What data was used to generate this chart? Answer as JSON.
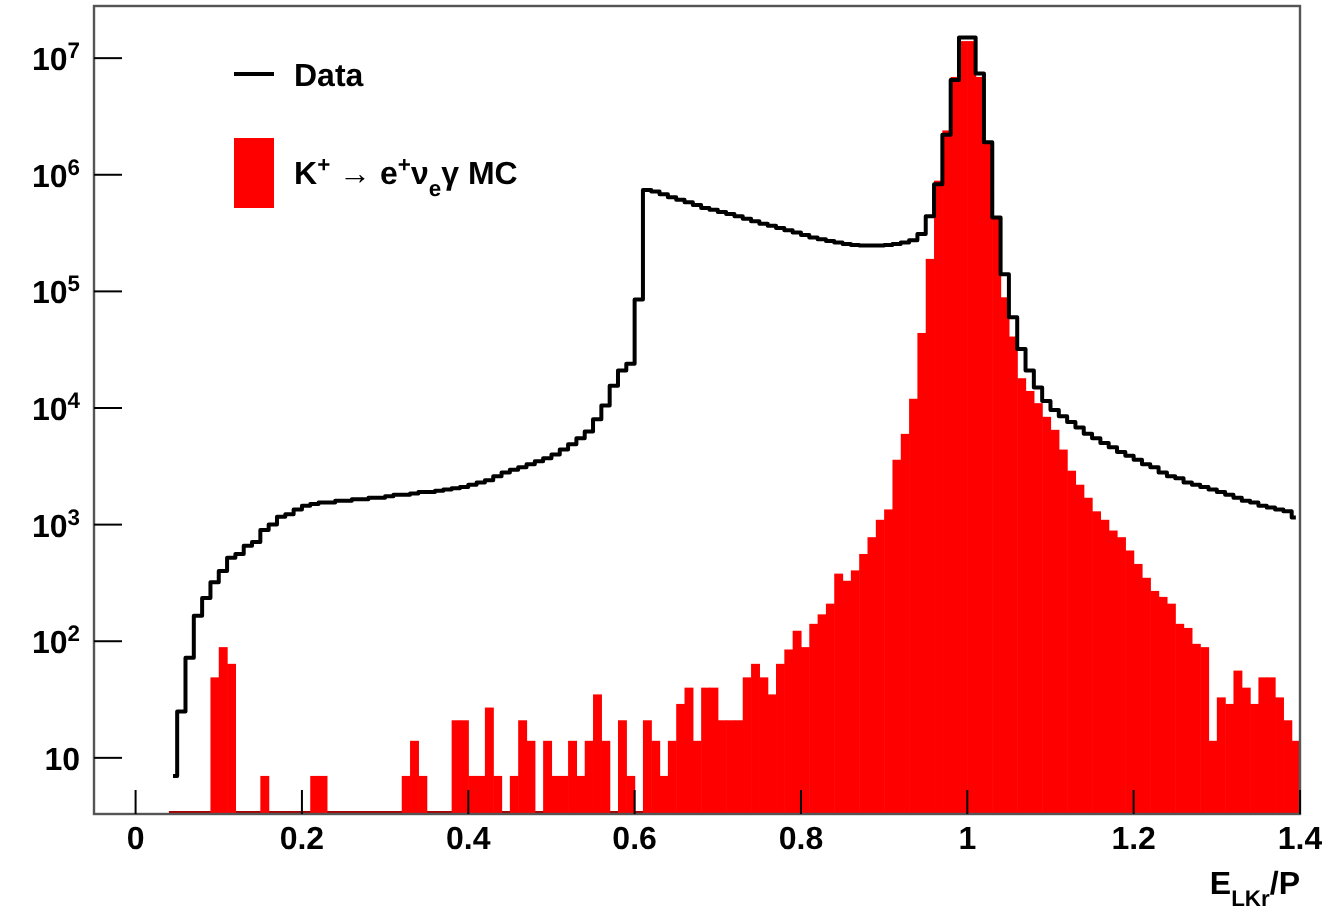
{
  "chart_data": {
    "type": "histogram",
    "xlabel": "E$_{LKr}$/P",
    "log": "y",
    "grid": false,
    "legend": "top left",
    "xlim": [
      -0.05,
      1.4
    ],
    "xticks": [
      0,
      0.2,
      0.4,
      0.6,
      0.8,
      1,
      1.2,
      1.4
    ],
    "ylim": [
      3.3,
      28000000
    ],
    "yticks": [
      10,
      {
        "value": 100,
        "label": "10$^{2}$"
      },
      {
        "value": 1000,
        "label": "10$^{3}$"
      },
      {
        "value": 10000,
        "label": "10$^{4}$"
      },
      {
        "value": 100000,
        "label": "10$^{5}$"
      },
      {
        "value": 1000000,
        "label": "10$^{6}$"
      },
      {
        "value": 10000000,
        "label": "10$^{7}$"
      }
    ],
    "bins": [
      0.04,
      0.05,
      0.06,
      0.07,
      0.08,
      0.09,
      0.1,
      0.11,
      0.12,
      0.13,
      0.14,
      0.15,
      0.16,
      0.17,
      0.18,
      0.19,
      0.2,
      0.21,
      0.22,
      0.23,
      0.24,
      0.25,
      0.26,
      0.27,
      0.28,
      0.29,
      0.3,
      0.31,
      0.32,
      0.33,
      0.34,
      0.35,
      0.36,
      0.37,
      0.38,
      0.39,
      0.4,
      0.41,
      0.42,
      0.43,
      0.44,
      0.45,
      0.46,
      0.47,
      0.48,
      0.49,
      0.5,
      0.51,
      0.52,
      0.53,
      0.54,
      0.55,
      0.56,
      0.57,
      0.58,
      0.59,
      0.6,
      0.61,
      0.62,
      0.63,
      0.64,
      0.65,
      0.66,
      0.67,
      0.68,
      0.69,
      0.7,
      0.71,
      0.72,
      0.73,
      0.74,
      0.75,
      0.76,
      0.77,
      0.78,
      0.79,
      0.8,
      0.81,
      0.82,
      0.83,
      0.84,
      0.85,
      0.86,
      0.87,
      0.88,
      0.89,
      0.9,
      0.91,
      0.92,
      0.93,
      0.94,
      0.95,
      0.96,
      0.97,
      0.98,
      0.99,
      1,
      1.01,
      1.02,
      1.03,
      1.04,
      1.05,
      1.06,
      1.07,
      1.08,
      1.09,
      1.1,
      1.11,
      1.12,
      1.13,
      1.14,
      1.15,
      1.16,
      1.17,
      1.18,
      1.19,
      1.2,
      1.21,
      1.22,
      1.23,
      1.24,
      1.25,
      1.26,
      1.27,
      1.28,
      1.29,
      1.3,
      1.31,
      1.32,
      1.33,
      1.34,
      1.35,
      1.36,
      1.37,
      1.38,
      1.39,
      1.4
    ],
    "series": [
      {
        "name": "Data",
        "type": "step",
        "color": "#000000",
        "x": [
          0.045,
          0.055,
          0.065,
          0.075,
          0.085,
          0.095,
          0.105,
          0.115,
          0.125,
          0.135,
          0.145,
          0.155,
          0.165,
          0.175,
          0.185,
          0.195,
          0.205,
          0.215,
          0.225,
          0.235,
          0.245,
          0.255,
          0.265,
          0.275,
          0.285,
          0.295,
          0.305,
          0.315,
          0.325,
          0.335,
          0.345,
          0.355,
          0.365,
          0.375,
          0.385,
          0.395,
          0.405,
          0.415,
          0.425,
          0.435,
          0.445,
          0.455,
          0.465,
          0.475,
          0.485,
          0.495,
          0.505,
          0.515,
          0.525,
          0.535,
          0.545,
          0.555,
          0.565,
          0.575,
          0.585,
          0.595,
          0.605,
          0.615,
          0.625,
          0.635,
          0.645,
          0.655,
          0.665,
          0.675,
          0.685,
          0.695,
          0.705,
          0.715,
          0.725,
          0.735,
          0.745,
          0.755,
          0.765,
          0.775,
          0.785,
          0.795,
          0.805,
          0.815,
          0.825,
          0.835,
          0.845,
          0.855,
          0.865,
          0.875,
          0.885,
          0.895,
          0.905,
          0.915,
          0.925,
          0.935,
          0.945,
          0.955,
          0.965,
          0.975,
          0.985,
          0.995,
          1.005,
          1.015,
          1.025,
          1.035,
          1.045,
          1.055,
          1.065,
          1.075,
          1.085,
          1.095,
          1.105,
          1.115,
          1.125,
          1.135,
          1.145,
          1.155,
          1.165,
          1.175,
          1.185,
          1.195,
          1.205,
          1.215,
          1.225,
          1.235,
          1.245,
          1.255,
          1.265,
          1.275,
          1.285,
          1.295,
          1.305,
          1.315,
          1.325,
          1.335,
          1.345,
          1.355,
          1.365,
          1.375,
          1.385,
          1.395
        ],
        "values": [
          7,
          25,
          72,
          165,
          235,
          320,
          400,
          520,
          560,
          660,
          710,
          900,
          1000,
          1170,
          1230,
          1350,
          1450,
          1500,
          1550,
          1550,
          1600,
          1600,
          1650,
          1650,
          1700,
          1700,
          1750,
          1800,
          1800,
          1850,
          1900,
          1900,
          1950,
          2000,
          2050,
          2100,
          2200,
          2300,
          2400,
          2600,
          2800,
          2950,
          3100,
          3300,
          3500,
          3700,
          4000,
          4400,
          4900,
          5500,
          6300,
          8000,
          10500,
          15500,
          21000,
          24000,
          85000,
          740000,
          720000,
          680000,
          640000,
          610000,
          580000,
          550000,
          520000,
          500000,
          480000,
          460000,
          440000,
          420000,
          400000,
          380000,
          365000,
          350000,
          335000,
          320000,
          305000,
          290000,
          280000,
          270000,
          262000,
          255000,
          250000,
          248000,
          247000,
          247000,
          250000,
          255000,
          262000,
          275000,
          310000,
          440000,
          830000,
          2200000,
          6500000,
          15000000,
          15000000,
          7400000,
          1900000,
          430000,
          140000,
          60000,
          32000,
          21000,
          15000,
          11500,
          9600,
          8500,
          7600,
          6800,
          6000,
          5500,
          5000,
          4600,
          4200,
          3900,
          3600,
          3300,
          3100,
          2800,
          2600,
          2500,
          2300,
          2200,
          2100,
          2000,
          1900,
          1800,
          1700,
          1600,
          1550,
          1450,
          1400,
          1350,
          1300,
          1150
        ]
      },
      {
        "name": "K$^{+}$ → e$^{+}$ν$_{e}$γ MC",
        "color": "#ff0000",
        "values": [
          null,
          null,
          null,
          null,
          null,
          49,
          89,
          64,
          null,
          null,
          null,
          7,
          null,
          null,
          null,
          null,
          null,
          7,
          7,
          null,
          null,
          null,
          null,
          null,
          null,
          null,
          null,
          null,
          7,
          14,
          7,
          null,
          null,
          null,
          21,
          21,
          7,
          7,
          27,
          7,
          null,
          7,
          21,
          14,
          null,
          14,
          7,
          7,
          14,
          7,
          14,
          35,
          14,
          null,
          21,
          7,
          null,
          21,
          14,
          7,
          14,
          29,
          40,
          14,
          40,
          40,
          21,
          21,
          21,
          49,
          64,
          49,
          35,
          64,
          85,
          123,
          89,
          141,
          170,
          210,
          380,
          330,
          405,
          560,
          780,
          1100,
          1350,
          3600,
          6000,
          12000,
          44000,
          190000,
          890000,
          2400000,
          6900000,
          14000000,
          14000000,
          6900000,
          1900000,
          440000,
          89000,
          41000,
          18000,
          14000,
          11000,
          8400,
          6500,
          4400,
          2900,
          2200,
          1700,
          1300,
          1100,
          890,
          780,
          600,
          460,
          350,
          270,
          240,
          210,
          141,
          130,
          95,
          89,
          14,
          33,
          29,
          56,
          40,
          29,
          49,
          49,
          33,
          21,
          14
        ]
      }
    ]
  }
}
